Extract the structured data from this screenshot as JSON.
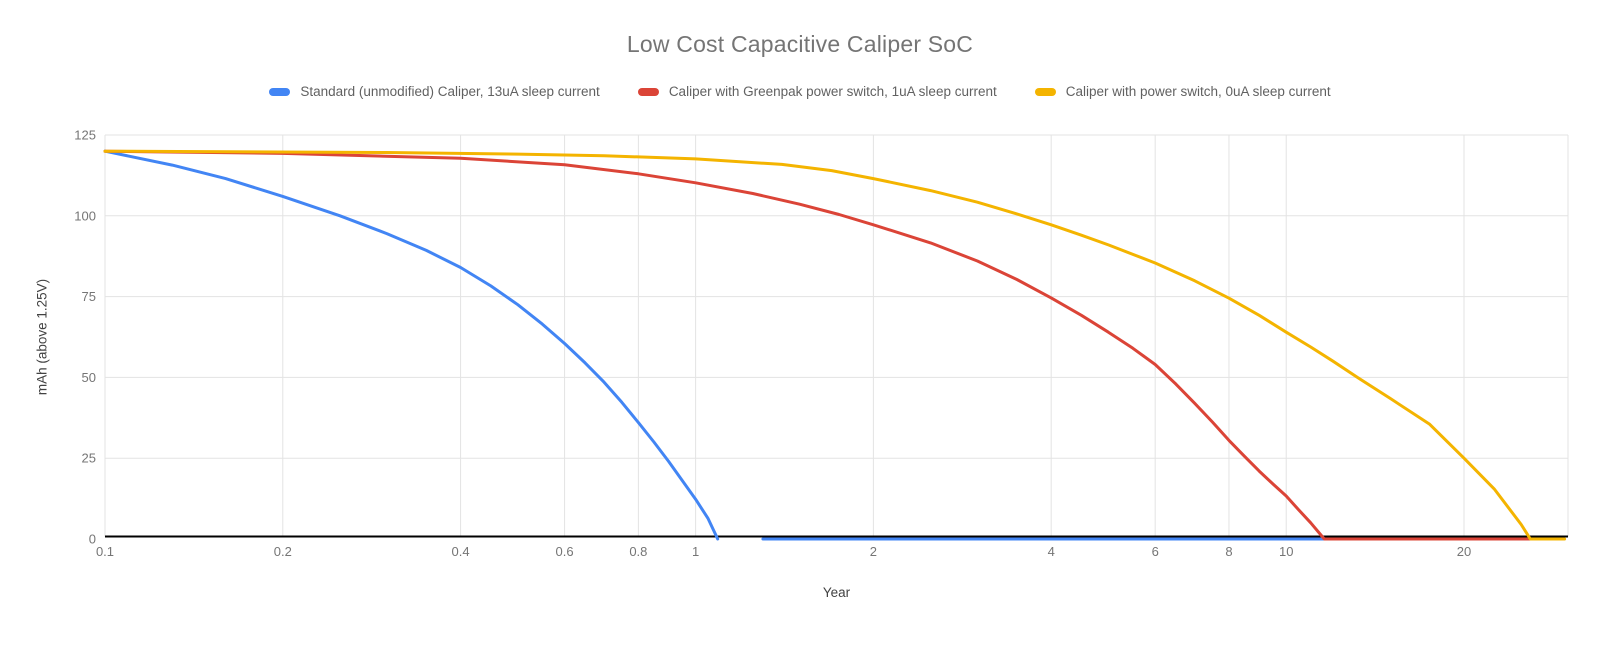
{
  "title": "Low Cost Capacitive Caliper SoC",
  "chart_data": {
    "type": "line",
    "title": "Low Cost Capacitive Caliper SoC",
    "xlabel": "Year",
    "ylabel": "mAh (above 1.25V)",
    "x_scale": "log",
    "xlim": [
      0.1,
      30
    ],
    "ylim": [
      0,
      125
    ],
    "x_ticks": [
      "0.1",
      "0.2",
      "0.4",
      "0.6",
      "0.8",
      "1",
      "2",
      "4",
      "6",
      "8",
      "10",
      "20"
    ],
    "y_ticks": [
      "0",
      "25",
      "50",
      "75",
      "100",
      "125"
    ],
    "grid": true,
    "legend_position": "top",
    "axis_line_color": "#000000",
    "gridline_color": "#e3e3e3",
    "series": [
      {
        "name": "Standard (unmodified) Caliper, 13uA sleep current",
        "color": "#4285F4",
        "segments": [
          [
            [
              0.1,
              120
            ],
            [
              0.13,
              115.7
            ],
            [
              0.16,
              111.5
            ],
            [
              0.2,
              106
            ],
            [
              0.25,
              100
            ],
            [
              0.3,
              94.5
            ],
            [
              0.35,
              89.3
            ],
            [
              0.4,
              84
            ],
            [
              0.45,
              78.3
            ],
            [
              0.5,
              72.5
            ],
            [
              0.55,
              66.5
            ],
            [
              0.6,
              60.5
            ],
            [
              0.65,
              54.5
            ],
            [
              0.7,
              48.5
            ],
            [
              0.75,
              42.3
            ],
            [
              0.8,
              36
            ],
            [
              0.85,
              30
            ],
            [
              0.9,
              24
            ],
            [
              0.95,
              18
            ],
            [
              1.0,
              12.3
            ],
            [
              1.05,
              6.3
            ],
            [
              1.09,
              0
            ]
          ],
          [
            [
              1.3,
              0
            ],
            [
              11.6,
              0
            ]
          ]
        ]
      },
      {
        "name": "Caliper with Greenpak power switch, 1uA sleep current",
        "color": "#DB4437",
        "segments": [
          [
            [
              0.1,
              120
            ],
            [
              0.2,
              119.3
            ],
            [
              0.4,
              117.8
            ],
            [
              0.6,
              115.8
            ],
            [
              0.8,
              113
            ],
            [
              1,
              110.2
            ],
            [
              1.25,
              106.9
            ],
            [
              1.5,
              103.6
            ],
            [
              1.75,
              100.4
            ],
            [
              2,
              97.2
            ],
            [
              2.5,
              91.6
            ],
            [
              3,
              86
            ],
            [
              3.5,
              80.3
            ],
            [
              4,
              74.6
            ],
            [
              4.5,
              69.2
            ],
            [
              5,
              64
            ],
            [
              5.5,
              59
            ],
            [
              6,
              54
            ],
            [
              6.5,
              48
            ],
            [
              7,
              42
            ],
            [
              7.5,
              36.2
            ],
            [
              8,
              30.5
            ],
            [
              8.5,
              25.6
            ],
            [
              9,
              21
            ],
            [
              9.5,
              17
            ],
            [
              10,
              13.3
            ],
            [
              10.5,
              9
            ],
            [
              11,
              5
            ],
            [
              11.6,
              0
            ],
            [
              25.9,
              0
            ]
          ]
        ]
      },
      {
        "name": "Caliper with power switch, 0uA sleep current",
        "color": "#F4B400",
        "segments": [
          [
            [
              0.1,
              120
            ],
            [
              0.3,
              119.6
            ],
            [
              0.5,
              119.1
            ],
            [
              0.7,
              118.6
            ],
            [
              1,
              117.6
            ],
            [
              1.4,
              115.9
            ],
            [
              1.7,
              114
            ],
            [
              2,
              111.5
            ],
            [
              2.5,
              107.8
            ],
            [
              3,
              104.2
            ],
            [
              3.5,
              100.6
            ],
            [
              4,
              97.2
            ],
            [
              4.5,
              94
            ],
            [
              5,
              91
            ],
            [
              6,
              85.4
            ],
            [
              7,
              79.9
            ],
            [
              8,
              74.5
            ],
            [
              9,
              69.2
            ],
            [
              10,
              64
            ],
            [
              11,
              59.4
            ],
            [
              12,
              55
            ],
            [
              13.2,
              50
            ],
            [
              15,
              43.5
            ],
            [
              17.5,
              35.5
            ],
            [
              20,
              25
            ],
            [
              22.5,
              15.5
            ],
            [
              25,
              4.5
            ],
            [
              25.9,
              0
            ],
            [
              29.6,
              0
            ]
          ]
        ]
      }
    ]
  }
}
